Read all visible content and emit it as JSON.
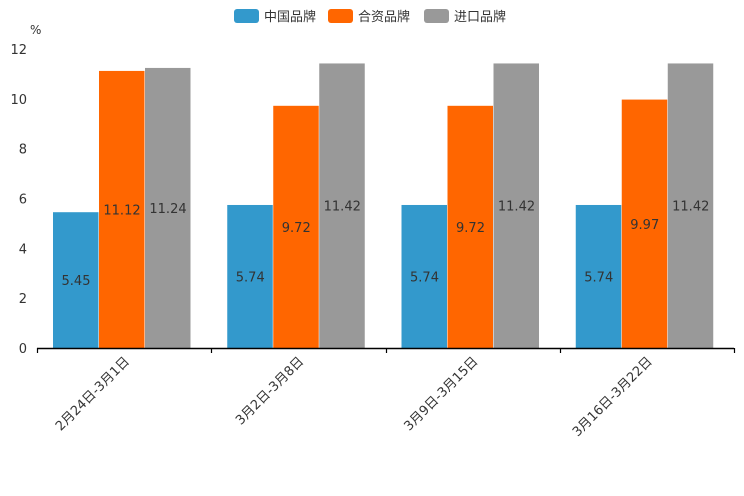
{
  "chart_data": {
    "type": "bar",
    "title": "",
    "xlabel": "",
    "ylabel": "%",
    "ylim": [
      0,
      12
    ],
    "yticks": [
      0,
      2,
      4,
      6,
      8,
      10,
      12
    ],
    "grid": false,
    "legend_position": "top-center",
    "categories": [
      "2月24日-3月1日",
      "3月2日-3月8日",
      "3月9日-3月15日",
      "3月16日-3月22日"
    ],
    "series": [
      {
        "name": "中国品牌",
        "color": "#3399cc",
        "values": [
          5.45,
          5.74,
          5.74,
          5.74
        ],
        "labels": [
          "5.45",
          "5.74",
          "5.74",
          "5.74"
        ]
      },
      {
        "name": "合资品牌",
        "color": "#ff6600",
        "values": [
          11.12,
          9.72,
          9.72,
          9.97
        ],
        "labels": [
          "11.12",
          "9.72",
          "9.72",
          "9.97"
        ]
      },
      {
        "name": "进口品牌",
        "color": "#999999",
        "values": [
          11.24,
          11.42,
          11.42,
          11.42
        ],
        "labels": [
          "11.24",
          "11.42",
          "11.42",
          "11.42"
        ]
      }
    ]
  }
}
